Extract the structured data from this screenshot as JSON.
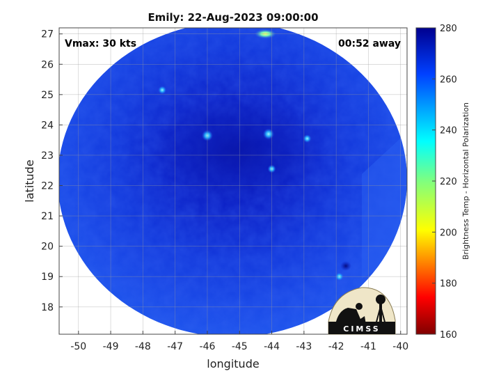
{
  "title": "Emily: 22-Aug-2023 09:00:00",
  "overlay": {
    "vmax": "Vmax: 30 kts",
    "time_away": "00:52 away"
  },
  "axes": {
    "xlabel": "longitude",
    "ylabel": "latitude",
    "x_ticks": [
      "-50",
      "-49",
      "-48",
      "-47",
      "-46",
      "-45",
      "-44",
      "-43",
      "-42",
      "-41",
      "-40"
    ],
    "y_ticks": [
      "18",
      "19",
      "20",
      "21",
      "22",
      "23",
      "24",
      "25",
      "26",
      "27"
    ],
    "xlim": [
      -50.6,
      -39.8
    ],
    "ylim": [
      17.1,
      27.2
    ],
    "grid": true
  },
  "colorbar": {
    "label": "Brightness Temp - Horizontal Polarization",
    "ticks": [
      "160",
      "180",
      "200",
      "220",
      "240",
      "260",
      "280"
    ],
    "range": [
      160,
      280
    ],
    "colormap": "jet"
  },
  "logo": {
    "text": "CIMSS"
  },
  "map_data": {
    "swath_center_lon": -45.0,
    "swath_center_lat": 22.2,
    "background_temp_k": 262,
    "center_temp_k": 272,
    "warm_spots": [
      {
        "lon": -46.0,
        "lat": 23.65,
        "temp_k": 238
      },
      {
        "lon": -44.1,
        "lat": 23.7,
        "temp_k": 242
      },
      {
        "lon": -42.9,
        "lat": 23.55,
        "temp_k": 250
      },
      {
        "lon": -47.4,
        "lat": 25.15,
        "temp_k": 252
      },
      {
        "lon": -44.0,
        "lat": 22.55,
        "temp_k": 255
      },
      {
        "lon": -44.2,
        "lat": 27.0,
        "temp_k": 205
      },
      {
        "lon": -41.9,
        "lat": 19.0,
        "temp_k": 250
      }
    ],
    "cold_spots": [
      {
        "lon": -41.7,
        "lat": 19.35,
        "temp_k": 275
      }
    ]
  }
}
